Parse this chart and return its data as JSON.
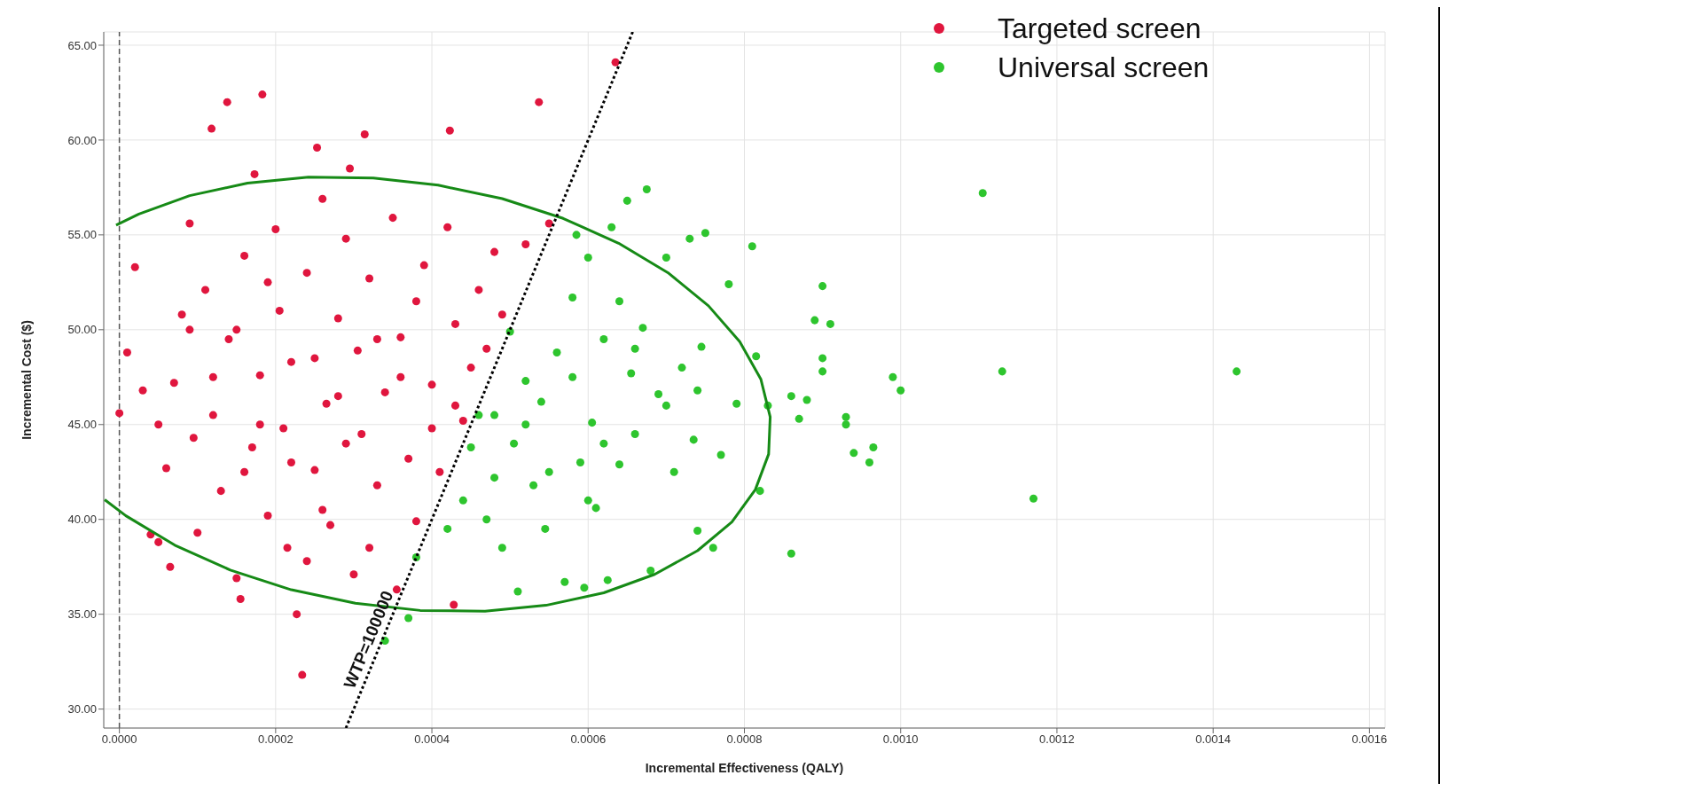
{
  "chart_data": {
    "type": "scatter",
    "xlabel": "Incremental Effectiveness (QALY)",
    "ylabel": "Incremental Cost ($)",
    "xlim": [
      -2e-05,
      0.00162
    ],
    "ylim": [
      29,
      65.7
    ],
    "xticks": [
      {
        "value": 0,
        "label": "0.0000"
      },
      0.0002,
      0.0004,
      0.0006,
      0.0008,
      {
        "value": 0.001,
        "label": "0.0010"
      },
      0.0012,
      0.0014,
      0.0016
    ],
    "yticks": [
      {
        "value": 30,
        "label": "30.00"
      },
      {
        "value": 35,
        "label": "35.00"
      },
      {
        "value": 40,
        "label": "40.00"
      },
      {
        "value": 45,
        "label": "45.00"
      },
      {
        "value": 50,
        "label": "50.00"
      },
      {
        "value": 55,
        "label": "55.00"
      },
      {
        "value": 60,
        "label": "60.00"
      },
      {
        "value": 65,
        "label": "65.00"
      }
    ],
    "grid": true,
    "legend": "top right",
    "marker": "circle",
    "ref_lines": [
      {
        "axis": "x",
        "value": 0,
        "line_style": "dashed",
        "color": "#555555"
      }
    ],
    "annotations": [
      "WTP=100000"
    ],
    "series": [
      {
        "name": "Targeted screen",
        "color": "#e0163e",
        "x": [
          0,
          1e-05,
          2e-05,
          3e-05,
          4e-05,
          5e-05,
          6e-05,
          6.5e-05,
          7e-05,
          8e-05,
          9e-05,
          9.5e-05,
          0.0001,
          0.00011,
          0.000118,
          0.00012,
          0.00013,
          0.000138,
          0.00014,
          0.00015,
          0.000155,
          0.00016,
          0.00017,
          0.000173,
          0.00018,
          0.000183,
          0.00019,
          0.0002,
          0.000205,
          0.00021,
          0.000215,
          0.00022,
          0.000227,
          0.000234,
          0.00024,
          0.00025,
          0.000253,
          0.00026,
          0.000265,
          0.00027,
          0.00028,
          0.00029,
          0.000295,
          0.0003,
          0.000305,
          0.000314,
          0.00032,
          0.00033,
          0.00034,
          0.00035,
          0.000355,
          0.00036,
          0.00037,
          0.00038,
          0.00039,
          0.0004,
          0.00041,
          0.00042,
          0.000423,
          0.000428,
          0.00043,
          0.00044,
          0.00045,
          0.00046,
          0.00047,
          0.00048,
          0.00049,
          0.00052,
          0.000537,
          0.00055,
          0.000635,
          0.00015,
          0.00018,
          0.00022,
          0.00025,
          0.00028,
          0.00031,
          0.00033,
          0.00036,
          0.00012,
          0.00019,
          0.00026,
          0.00032,
          0.0004,
          0.00038,
          9e-05,
          5e-05,
          0.00043,
          0.00024,
          0.00016,
          0.00029
        ],
        "values": [
          45.6,
          48.8,
          53.3,
          46.8,
          39.2,
          38.8,
          42.7,
          37.5,
          47.2,
          50.8,
          55.6,
          44.3,
          39.3,
          52.1,
          60.6,
          45.5,
          41.5,
          62.0,
          49.5,
          36.9,
          35.8,
          53.9,
          43.8,
          58.2,
          47.6,
          62.4,
          40.2,
          55.3,
          51.0,
          44.8,
          38.5,
          48.3,
          35.0,
          31.8,
          53.0,
          42.6,
          59.6,
          56.9,
          46.1,
          39.7,
          50.6,
          44.0,
          58.5,
          37.1,
          48.9,
          60.3,
          52.7,
          41.8,
          46.7,
          55.9,
          36.3,
          49.6,
          43.2,
          39.9,
          53.4,
          47.1,
          42.5,
          55.4,
          60.5,
          35.5,
          50.3,
          45.2,
          48.0,
          52.1,
          49.0,
          54.1,
          50.8,
          54.5,
          62.0,
          55.6,
          64.1,
          50.0,
          45.0,
          43.0,
          48.5,
          46.5,
          44.5,
          49.5,
          47.5,
          47.5,
          52.5,
          40.5,
          38.5,
          44.8,
          51.5,
          50.0,
          45.0,
          46.0,
          37.8,
          42.5,
          54.8
        ]
      },
      {
        "name": "Universal screen",
        "color": "#2ec52e",
        "x": [
          0.00034,
          0.00037,
          0.00038,
          0.00042,
          0.00044,
          0.00045,
          0.00046,
          0.00047,
          0.00048,
          0.00049,
          0.0005,
          0.000505,
          0.00051,
          0.00052,
          0.00053,
          0.00054,
          0.000545,
          0.00056,
          0.00057,
          0.00058,
          0.000585,
          0.00059,
          0.000595,
          0.0006,
          0.000605,
          0.00061,
          0.00062,
          0.000625,
          0.00063,
          0.00064,
          0.00065,
          0.000655,
          0.00066,
          0.00067,
          0.000675,
          0.00068,
          0.00069,
          0.0007,
          0.00071,
          0.00072,
          0.00073,
          0.000735,
          0.00074,
          0.000745,
          0.00075,
          0.00076,
          0.00077,
          0.00078,
          0.00079,
          0.00081,
          0.000815,
          0.00082,
          0.00083,
          0.00086,
          0.00086,
          0.00087,
          0.00088,
          0.00089,
          0.0009,
          0.0009,
          0.0009,
          0.00091,
          0.00093,
          0.00093,
          0.00094,
          0.00096,
          0.000965,
          0.00099,
          0.001,
          0.001105,
          0.00113,
          0.00117,
          0.00143,
          0.00055,
          0.00052,
          0.00058,
          0.00062,
          0.00066,
          0.0007,
          0.00074,
          0.00048,
          0.0006,
          0.00064
        ],
        "values": [
          33.6,
          34.8,
          38.0,
          39.5,
          41.0,
          43.8,
          45.5,
          40.0,
          45.5,
          38.5,
          49.9,
          44.0,
          36.2,
          47.3,
          41.8,
          46.2,
          39.5,
          48.8,
          36.7,
          51.7,
          55.0,
          43.0,
          36.4,
          53.8,
          45.1,
          40.6,
          49.5,
          36.8,
          55.4,
          42.9,
          56.8,
          47.7,
          44.5,
          50.1,
          57.4,
          37.3,
          46.6,
          53.8,
          42.5,
          48.0,
          54.8,
          44.2,
          39.4,
          49.1,
          55.1,
          38.5,
          43.4,
          52.4,
          46.1,
          54.4,
          48.6,
          41.5,
          46.0,
          38.2,
          46.5,
          45.3,
          46.3,
          50.5,
          48.5,
          47.8,
          52.3,
          50.3,
          45.0,
          45.4,
          43.5,
          43.0,
          43.8,
          47.5,
          46.8,
          57.2,
          47.8,
          41.1,
          47.8,
          42.5,
          45.0,
          47.5,
          44.0,
          49.0,
          46.0,
          46.8,
          42.2,
          41.0,
          51.5
        ]
      },
      {
        "type": "line",
        "color": "#168a16",
        "marker": "none",
        "x": [
          -1.88e-05,
          8.3e-06,
          7.1e-05,
          0.000142,
          0.00022,
          0.000302,
          0.000385,
          0.000468,
          0.000546,
          0.00062,
          0.000685,
          0.00074,
          0.000784,
          0.000814,
          0.000831,
          0.000833,
          0.000821,
          0.000794,
          0.000754,
          0.000702,
          0.000639,
          0.000568,
          0.00049,
          0.000408,
          0.000325,
          0.000242,
          0.000164,
          9e-05,
          2.5e-05,
          -4.2e-06
        ],
        "values": [
          41.04,
          40.19,
          38.64,
          37.33,
          36.29,
          35.58,
          35.2,
          35.16,
          35.47,
          36.13,
          37.1,
          38.35,
          39.86,
          41.57,
          43.44,
          45.4,
          47.4,
          49.37,
          51.26,
          53.01,
          54.56,
          55.87,
          56.91,
          57.62,
          58.0,
          58.04,
          57.73,
          57.07,
          56.1,
          55.51
        ]
      },
      {
        "type": "line",
        "color": "#000000",
        "marker": "none",
        "line_style": "dotted",
        "x": [
          0.00029,
          0.000657
        ],
        "values": [
          29.0,
          65.7
        ]
      }
    ]
  }
}
